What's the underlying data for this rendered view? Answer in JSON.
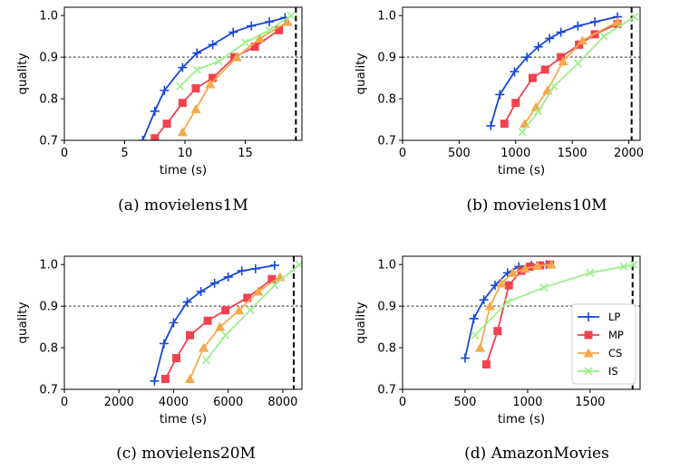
{
  "colors": {
    "LP": "#1747d6",
    "MP": "#f2414f",
    "CS": "#f5a94a",
    "IS": "#9bf08a",
    "threshold": "#808080",
    "deadline": "#000000"
  },
  "chart_data": [
    {
      "type": "line",
      "caption": "(a) movielens1M",
      "xlabel": "time (s)",
      "ylabel": "quality",
      "xlim": [
        0,
        19.7
      ],
      "ylim": [
        0.7,
        1.02
      ],
      "xticks": [
        "0",
        "5",
        "10",
        "15"
      ],
      "yticks": [
        "0.7",
        "0.8",
        "0.9",
        "1.0"
      ],
      "threshold": 0.9,
      "deadline": 19.2,
      "legend": false,
      "series": [
        {
          "name": "LP",
          "marker": "plus",
          "points": [
            [
              6.5,
              0.7
            ],
            [
              7.5,
              0.77
            ],
            [
              8.3,
              0.82
            ],
            [
              9.8,
              0.875
            ],
            [
              11.0,
              0.91
            ],
            [
              12.3,
              0.93
            ],
            [
              14.0,
              0.96
            ],
            [
              15.5,
              0.975
            ],
            [
              17.0,
              0.985
            ],
            [
              18.3,
              0.995
            ]
          ]
        },
        {
          "name": "MP",
          "marker": "square",
          "points": [
            [
              7.5,
              0.705
            ],
            [
              8.5,
              0.74
            ],
            [
              9.8,
              0.79
            ],
            [
              10.9,
              0.825
            ],
            [
              12.3,
              0.85
            ],
            [
              14.1,
              0.9
            ],
            [
              15.8,
              0.925
            ],
            [
              17.8,
              0.965
            ]
          ]
        },
        {
          "name": "CS",
          "marker": "triangle",
          "points": [
            [
              9.8,
              0.72
            ],
            [
              10.9,
              0.775
            ],
            [
              12.1,
              0.835
            ],
            [
              14.3,
              0.9
            ],
            [
              16.2,
              0.945
            ],
            [
              18.5,
              0.985
            ]
          ]
        },
        {
          "name": "IS",
          "marker": "x",
          "points": [
            [
              9.6,
              0.83
            ],
            [
              11.0,
              0.87
            ],
            [
              12.8,
              0.89
            ],
            [
              15.0,
              0.935
            ],
            [
              17.0,
              0.965
            ],
            [
              18.8,
              1.0
            ]
          ]
        }
      ]
    },
    {
      "type": "line",
      "caption": "(b) movielens10M",
      "xlabel": "time (s)",
      "ylabel": "quality",
      "xlim": [
        0,
        2100
      ],
      "ylim": [
        0.7,
        1.02
      ],
      "xticks": [
        "0",
        "500",
        "1000",
        "1500",
        "2000"
      ],
      "yticks": [
        "0.7",
        "0.8",
        "0.9",
        "1.0"
      ],
      "threshold": 0.9,
      "deadline": 2025,
      "legend": false,
      "series": [
        {
          "name": "LP",
          "marker": "plus",
          "points": [
            [
              780,
              0.735
            ],
            [
              860,
              0.81
            ],
            [
              990,
              0.865
            ],
            [
              1100,
              0.9
            ],
            [
              1200,
              0.925
            ],
            [
              1300,
              0.945
            ],
            [
              1400,
              0.96
            ],
            [
              1550,
              0.975
            ],
            [
              1700,
              0.985
            ],
            [
              1900,
              0.997
            ]
          ]
        },
        {
          "name": "MP",
          "marker": "square",
          "points": [
            [
              900,
              0.74
            ],
            [
              1000,
              0.79
            ],
            [
              1150,
              0.85
            ],
            [
              1260,
              0.87
            ],
            [
              1400,
              0.9
            ],
            [
              1560,
              0.93
            ],
            [
              1700,
              0.955
            ],
            [
              1900,
              0.98
            ]
          ]
        },
        {
          "name": "CS",
          "marker": "triangle",
          "points": [
            [
              1080,
              0.74
            ],
            [
              1180,
              0.78
            ],
            [
              1280,
              0.82
            ],
            [
              1420,
              0.89
            ],
            [
              1590,
              0.94
            ],
            [
              1900,
              0.985
            ]
          ]
        },
        {
          "name": "IS",
          "marker": "x",
          "points": [
            [
              1060,
              0.72
            ],
            [
              1200,
              0.77
            ],
            [
              1340,
              0.83
            ],
            [
              1550,
              0.885
            ],
            [
              1780,
              0.95
            ],
            [
              2050,
              0.997
            ]
          ]
        }
      ]
    },
    {
      "type": "line",
      "caption": "(c) movielens20M",
      "xlabel": "time (s)",
      "ylabel": "quality",
      "xlim": [
        0,
        8700
      ],
      "ylim": [
        0.7,
        1.02
      ],
      "xticks": [
        "0",
        "2000",
        "4000",
        "6000",
        "8000"
      ],
      "yticks": [
        "0.7",
        "0.8",
        "0.9",
        "1.0"
      ],
      "threshold": 0.9,
      "deadline": 8400,
      "legend": false,
      "series": [
        {
          "name": "LP",
          "marker": "plus",
          "points": [
            [
              3300,
              0.72
            ],
            [
              3650,
              0.81
            ],
            [
              4000,
              0.86
            ],
            [
              4500,
              0.91
            ],
            [
              5000,
              0.935
            ],
            [
              5500,
              0.955
            ],
            [
              6000,
              0.97
            ],
            [
              6500,
              0.985
            ],
            [
              7000,
              0.99
            ],
            [
              7700,
              0.998
            ]
          ]
        },
        {
          "name": "MP",
          "marker": "square",
          "points": [
            [
              3700,
              0.725
            ],
            [
              4100,
              0.775
            ],
            [
              4600,
              0.83
            ],
            [
              5250,
              0.865
            ],
            [
              5900,
              0.89
            ],
            [
              6700,
              0.92
            ],
            [
              7600,
              0.965
            ]
          ]
        },
        {
          "name": "CS",
          "marker": "triangle",
          "points": [
            [
              4600,
              0.725
            ],
            [
              5100,
              0.8
            ],
            [
              5700,
              0.85
            ],
            [
              6400,
              0.89
            ],
            [
              7100,
              0.935
            ],
            [
              7900,
              0.97
            ]
          ]
        },
        {
          "name": "IS",
          "marker": "x",
          "points": [
            [
              5200,
              0.77
            ],
            [
              5900,
              0.83
            ],
            [
              6800,
              0.89
            ],
            [
              7700,
              0.95
            ],
            [
              8600,
              1.0
            ]
          ]
        }
      ]
    },
    {
      "type": "line",
      "caption": "(d) AmazonMovies",
      "xlabel": "time (s)",
      "ylabel": "quality",
      "xlim": [
        0,
        1900
      ],
      "ylim": [
        0.7,
        1.02
      ],
      "xticks": [
        "0",
        "500",
        "1000",
        "1500"
      ],
      "yticks": [
        "0.7",
        "0.8",
        "0.9",
        "1.0"
      ],
      "threshold": 0.9,
      "deadline": 1840,
      "legend": true,
      "legend_position": "lower-right",
      "series": [
        {
          "name": "LP",
          "marker": "plus",
          "points": [
            [
              500,
              0.775
            ],
            [
              570,
              0.87
            ],
            [
              650,
              0.915
            ],
            [
              740,
              0.95
            ],
            [
              840,
              0.98
            ],
            [
              930,
              0.995
            ],
            [
              1030,
              0.998
            ],
            [
              1150,
              1.0
            ]
          ]
        },
        {
          "name": "MP",
          "marker": "square",
          "points": [
            [
              670,
              0.76
            ],
            [
              760,
              0.84
            ],
            [
              850,
              0.95
            ],
            [
              950,
              0.985
            ],
            [
              1020,
              0.995
            ],
            [
              1100,
              0.998
            ],
            [
              1180,
              1.0
            ]
          ]
        },
        {
          "name": "CS",
          "marker": "triangle",
          "points": [
            [
              620,
              0.8
            ],
            [
              700,
              0.9
            ],
            [
              790,
              0.955
            ],
            [
              880,
              0.98
            ],
            [
              980,
              0.99
            ],
            [
              1080,
              0.997
            ],
            [
              1190,
              1.0
            ]
          ]
        },
        {
          "name": "IS",
          "marker": "x",
          "points": [
            [
              580,
              0.83
            ],
            [
              840,
              0.91
            ],
            [
              1130,
              0.945
            ],
            [
              1500,
              0.98
            ],
            [
              1770,
              0.995
            ],
            [
              1850,
              1.0
            ]
          ]
        }
      ]
    }
  ]
}
